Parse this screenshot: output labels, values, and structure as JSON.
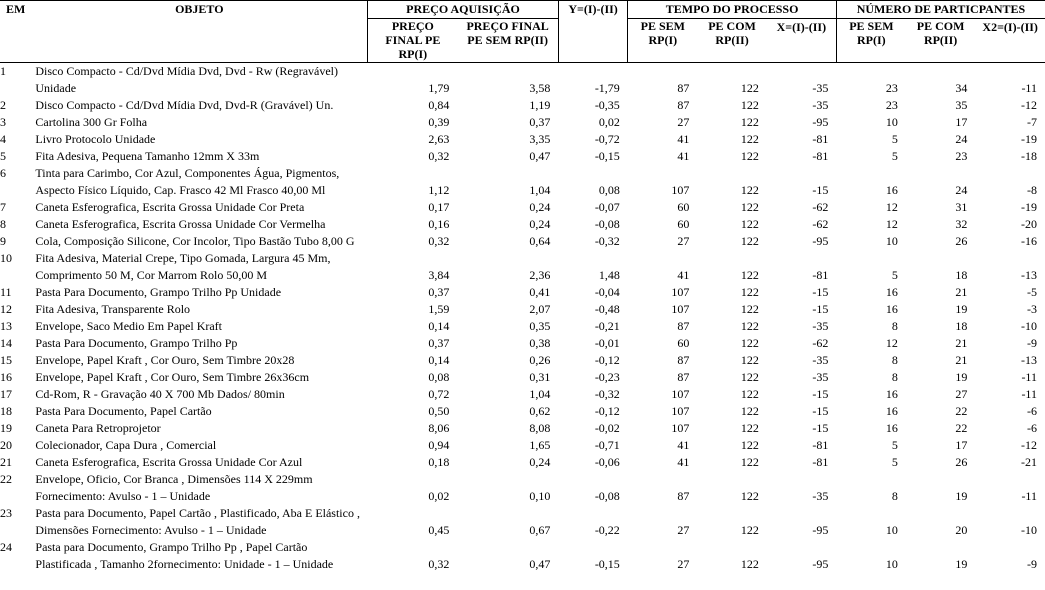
{
  "headers": {
    "item": "EM",
    "objeto": "OBJETO",
    "grp_preco": "PREÇO AQUISIÇÃO",
    "grp_tempo": "TEMPO DO PROCESSO",
    "grp_part": "NÚMERO DE PARTICPANTES",
    "p1": "PREÇO FINAL PE RP(I)",
    "p2": "PREÇO FINAL PE SEM RP(II)",
    "y": "Y=(I)-(II)",
    "t1": "PE SEM RP(I)",
    "t2": "PE COM RP(II)",
    "x": "X=(I)-(II)",
    "n1": "PE SEM RP(I)",
    "n2": "PE COM RP(II)",
    "x2": "X2=(I)-(II)"
  },
  "rows": [
    {
      "n": "1",
      "obj": [
        "Disco Compacto - Cd/Dvd Mídia Dvd, Dvd - Rw (Regravável)",
        "Unidade"
      ],
      "p1": "1,79",
      "p2": "3,58",
      "y": "-1,79",
      "t1": "87",
      "t2": "122",
      "x": "-35",
      "n1": "23",
      "n2": "34",
      "x2": "-11"
    },
    {
      "n": "2",
      "obj": [
        "Disco Compacto - Cd/Dvd Mídia Dvd, Dvd-R (Gravável) Un."
      ],
      "p1": "0,84",
      "p2": "1,19",
      "y": "-0,35",
      "t1": "87",
      "t2": "122",
      "x": "-35",
      "n1": "23",
      "n2": "35",
      "x2": "-12"
    },
    {
      "n": "3",
      "obj": [
        "Cartolina 300 Gr Folha"
      ],
      "p1": "0,39",
      "p2": "0,37",
      "y": "0,02",
      "t1": "27",
      "t2": "122",
      "x": "-95",
      "n1": "10",
      "n2": "17",
      "x2": "-7"
    },
    {
      "n": "4",
      "obj": [
        "Livro Protocolo Unidade"
      ],
      "p1": "2,63",
      "p2": "3,35",
      "y": "-0,72",
      "t1": "41",
      "t2": "122",
      "x": "-81",
      "n1": "5",
      "n2": "24",
      "x2": "-19"
    },
    {
      "n": "5",
      "obj": [
        "Fita Adesiva, Pequena Tamanho 12mm X 33m"
      ],
      "p1": "0,32",
      "p2": "0,47",
      "y": "-0,15",
      "t1": "41",
      "t2": "122",
      "x": "-81",
      "n1": "5",
      "n2": "23",
      "x2": "-18"
    },
    {
      "n": "6",
      "obj": [
        "Tinta para Carimbo, Cor Azul, Componentes Água, Pigmentos,",
        "Aspecto Físico Líquido, Cap. Frasco 42 Ml  Frasco 40,00 Ml"
      ],
      "p1": "1,12",
      "p2": "1,04",
      "y": "0,08",
      "t1": "107",
      "t2": "122",
      "x": "-15",
      "n1": "16",
      "n2": "24",
      "x2": "-8"
    },
    {
      "n": "7",
      "obj": [
        "Caneta Esferografica, Escrita Grossa Unidade Cor Preta"
      ],
      "p1": "0,17",
      "p2": "0,24",
      "y": "-0,07",
      "t1": "60",
      "t2": "122",
      "x": "-62",
      "n1": "12",
      "n2": "31",
      "x2": "-19"
    },
    {
      "n": "8",
      "obj": [
        "Caneta Esferografica, Escrita Grossa Unidade Cor Vermelha"
      ],
      "p1": "0,16",
      "p2": "0,24",
      "y": "-0,08",
      "t1": "60",
      "t2": "122",
      "x": "-62",
      "n1": "12",
      "n2": "32",
      "x2": "-20"
    },
    {
      "n": "9",
      "obj": [
        "Cola, Composição Silicone, Cor Incolor, Tipo Bastão Tubo 8,00 G"
      ],
      "p1": "0,32",
      "p2": "0,64",
      "y": "-0,32",
      "t1": "27",
      "t2": "122",
      "x": "-95",
      "n1": "10",
      "n2": "26",
      "x2": "-16"
    },
    {
      "n": "10",
      "obj": [
        "Fita Adesiva, Material Crepe, Tipo Gomada, Largura 45 Mm,",
        "Comprimento 50 M, Cor Marrom Rolo 50,00 M"
      ],
      "p1": "3,84",
      "p2": "2,36",
      "y": "1,48",
      "t1": "41",
      "t2": "122",
      "x": "-81",
      "n1": "5",
      "n2": "18",
      "x2": "-13"
    },
    {
      "n": "11",
      "obj": [
        "Pasta Para Documento, Grampo Trilho Pp Unidade"
      ],
      "p1": "0,37",
      "p2": "0,41",
      "y": "-0,04",
      "t1": "107",
      "t2": "122",
      "x": "-15",
      "n1": "16",
      "n2": "21",
      "x2": "-5"
    },
    {
      "n": "12",
      "obj": [
        "Fita Adesiva, Transparente Rolo"
      ],
      "p1": "1,59",
      "p2": "2,07",
      "y": "-0,48",
      "t1": "107",
      "t2": "122",
      "x": "-15",
      "n1": "16",
      "n2": "19",
      "x2": "-3"
    },
    {
      "n": "13",
      "obj": [
        "Envelope, Saco Medio Em Papel Kraft"
      ],
      "p1": "0,14",
      "p2": "0,35",
      "y": "-0,21",
      "t1": "87",
      "t2": "122",
      "x": "-35",
      "n1": "8",
      "n2": "18",
      "x2": "-10"
    },
    {
      "n": "14",
      "obj": [
        "Pasta Para Documento, Grampo Trilho Pp"
      ],
      "p1": "0,37",
      "p2": "0,38",
      "y": "-0,01",
      "t1": "60",
      "t2": "122",
      "x": "-62",
      "n1": "12",
      "n2": "21",
      "x2": "-9"
    },
    {
      "n": "15",
      "obj": [
        "Envelope, Papel Kraft , Cor Ouro, Sem Timbre 20x28"
      ],
      "p1": "0,14",
      "p2": "0,26",
      "y": "-0,12",
      "t1": "87",
      "t2": "122",
      "x": "-35",
      "n1": "8",
      "n2": "21",
      "x2": "-13"
    },
    {
      "n": "16",
      "obj": [
        "Envelope, Papel Kraft , Cor Ouro, Sem Timbre 26x36cm"
      ],
      "p1": "0,08",
      "p2": "0,31",
      "y": "-0,23",
      "t1": "87",
      "t2": "122",
      "x": "-35",
      "n1": "8",
      "n2": "19",
      "x2": "-11"
    },
    {
      "n": "17",
      "obj": [
        "Cd-Rom, R - Gravação 40 X 700 Mb Dados/ 80min"
      ],
      "p1": "0,72",
      "p2": "1,04",
      "y": "-0,32",
      "t1": "107",
      "t2": "122",
      "x": "-15",
      "n1": "16",
      "n2": "27",
      "x2": "-11"
    },
    {
      "n": "18",
      "obj": [
        "Pasta Para Documento, Papel Cartão"
      ],
      "p1": "0,50",
      "p2": "0,62",
      "y": "-0,12",
      "t1": "107",
      "t2": "122",
      "x": "-15",
      "n1": "16",
      "n2": "22",
      "x2": "-6"
    },
    {
      "n": "19",
      "obj": [
        "Caneta Para Retroprojetor"
      ],
      "p1": "8,06",
      "p2": "8,08",
      "y": "-0,02",
      "t1": "107",
      "t2": "122",
      "x": "-15",
      "n1": "16",
      "n2": "22",
      "x2": "-6"
    },
    {
      "n": "20",
      "obj": [
        "Colecionador, Capa Dura , Comercial"
      ],
      "p1": "0,94",
      "p2": "1,65",
      "y": "-0,71",
      "t1": "41",
      "t2": "122",
      "x": "-81",
      "n1": "5",
      "n2": "17",
      "x2": "-12"
    },
    {
      "n": "21",
      "obj": [
        "Caneta Esferografica, Escrita Grossa Unidade Cor Azul"
      ],
      "p1": "0,18",
      "p2": "0,24",
      "y": "-0,06",
      "t1": "41",
      "t2": "122",
      "x": "-81",
      "n1": "5",
      "n2": "26",
      "x2": "-21"
    },
    {
      "n": "22",
      "obj": [
        "Envelope, Oficio, Cor Branca , Dimensões 114 X 229mm",
        "Fornecimento: Avulso - 1 – Unidade"
      ],
      "p1": "0,02",
      "p2": "0,10",
      "y": "-0,08",
      "t1": "87",
      "t2": "122",
      "x": "-35",
      "n1": "8",
      "n2": "19",
      "x2": "-11"
    },
    {
      "n": "23",
      "obj": [
        "Pasta para Documento, Papel Cartão , Plastificado, Aba E Elástico ,",
        "Dimensões Fornecimento: Avulso - 1 – Unidade"
      ],
      "p1": "0,45",
      "p2": "0,67",
      "y": "-0,22",
      "t1": "27",
      "t2": "122",
      "x": "-95",
      "n1": "10",
      "n2": "20",
      "x2": "-10"
    },
    {
      "n": "24",
      "obj": [
        "Pasta para Documento, Grampo Trilho Pp , Papel Cartão",
        "Plastificada , Tamanho 2fornecimento: Unidade - 1 – Unidade"
      ],
      "p1": "0,32",
      "p2": "0,47",
      "y": "-0,15",
      "t1": "27",
      "t2": "122",
      "x": "-95",
      "n1": "10",
      "n2": "19",
      "x2": "-9"
    }
  ]
}
